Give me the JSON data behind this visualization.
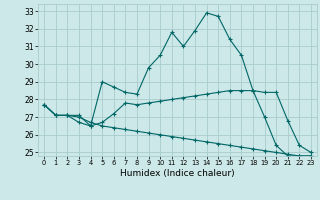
{
  "xlabel": "Humidex (Indice chaleur)",
  "bg_color": "#cce8e8",
  "grid_color": "#aacccc",
  "line_color": "#006666",
  "xlim": [
    -0.5,
    23.5
  ],
  "ylim": [
    24.8,
    33.4
  ],
  "yticks": [
    25,
    26,
    27,
    28,
    29,
    30,
    31,
    32,
    33
  ],
  "xticks": [
    0,
    1,
    2,
    3,
    4,
    5,
    6,
    7,
    8,
    9,
    10,
    11,
    12,
    13,
    14,
    15,
    16,
    17,
    18,
    19,
    20,
    21,
    22,
    23
  ],
  "series": [
    [
      27.7,
      27.1,
      27.1,
      26.7,
      26.5,
      29.0,
      28.7,
      28.4,
      28.3,
      29.8,
      30.5,
      31.8,
      31.0,
      31.9,
      32.9,
      32.7,
      31.4,
      30.5,
      28.5,
      27.0,
      25.4,
      24.8,
      24.8,
      24.8
    ],
    [
      27.7,
      27.1,
      27.1,
      27.1,
      26.5,
      26.7,
      27.2,
      27.8,
      27.7,
      27.8,
      27.9,
      28.0,
      28.1,
      28.2,
      28.3,
      28.4,
      28.5,
      28.5,
      28.5,
      28.4,
      28.4,
      26.8,
      25.4,
      25.0
    ],
    [
      27.7,
      27.1,
      27.1,
      27.0,
      26.7,
      26.5,
      26.4,
      26.3,
      26.2,
      26.1,
      26.0,
      25.9,
      25.8,
      25.7,
      25.6,
      25.5,
      25.4,
      25.3,
      25.2,
      25.1,
      25.0,
      24.9,
      24.8,
      24.8
    ]
  ]
}
